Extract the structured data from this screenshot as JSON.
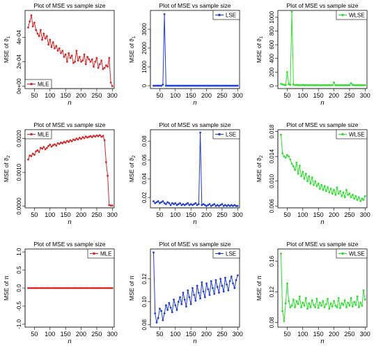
{
  "figure": {
    "background": "#ffffff"
  },
  "chart_data": [
    {
      "type": "line",
      "color": "#d62728",
      "title": "Plot of MSE vs sample size",
      "xlabel": "n",
      "ylabel_base": "MSE of ϑ",
      "ylabel_sub": "1",
      "legend": "MLE",
      "legend_position": "bottom-left",
      "xlim": [
        20,
        306
      ],
      "ylim": [
        -2e-05,
        0.00062
      ],
      "xticks": [
        50,
        100,
        150,
        200,
        250,
        300
      ],
      "yticks": [
        0,
        0.0002,
        0.0004
      ],
      "ytick_labels": [
        "0e+00",
        "2e-04",
        "4e-04"
      ],
      "x": [
        30,
        35,
        40,
        45,
        50,
        55,
        60,
        65,
        70,
        75,
        80,
        85,
        90,
        95,
        100,
        105,
        110,
        115,
        120,
        125,
        130,
        135,
        140,
        145,
        150,
        155,
        160,
        165,
        170,
        175,
        180,
        185,
        190,
        195,
        200,
        205,
        210,
        215,
        220,
        225,
        230,
        235,
        240,
        245,
        250,
        255,
        260,
        265,
        270,
        275,
        280,
        285,
        290,
        295,
        300
      ],
      "values": [
        0.00048,
        0.00053,
        0.00058,
        0.00049,
        0.00052,
        0.00046,
        0.00043,
        0.00041,
        0.00046,
        0.00038,
        0.00043,
        0.00039,
        0.00041,
        0.00034,
        0.00038,
        0.00032,
        0.00036,
        0.00031,
        0.00033,
        0.00029,
        0.00031,
        0.00027,
        0.00029,
        0.00024,
        0.00026,
        0.0002,
        0.00027,
        0.00023,
        0.00025,
        0.00019,
        0.0002,
        0.00029,
        0.00021,
        0.00024,
        0.0002,
        0.00021,
        0.00026,
        0.00018,
        0.00024,
        0.00022,
        0.0002,
        0.00022,
        0.00016,
        0.0002,
        0.00023,
        0.00015,
        0.00018,
        0.00021,
        0.00014,
        0.00015,
        0.00017,
        0.00016,
        0.00023,
        3e-05,
        0.0
      ]
    },
    {
      "type": "line",
      "color": "#1f3fd6",
      "title": "Plot of MSE vs sample size",
      "xlabel": "n",
      "ylabel_base": "MSE of ϑ",
      "ylabel_sub": "1",
      "legend": "LSE",
      "legend_position": "top-right",
      "xlim": [
        20,
        306
      ],
      "ylim": [
        -150,
        4000
      ],
      "xticks": [
        50,
        100,
        150,
        200,
        250,
        300
      ],
      "yticks": [
        0,
        1000,
        2000,
        3000
      ],
      "ytick_labels": [
        "0",
        "1000",
        "2000",
        "3000"
      ],
      "x": [
        30,
        35,
        40,
        45,
        50,
        55,
        60,
        65,
        70,
        75,
        80,
        85,
        90,
        95,
        100,
        105,
        110,
        115,
        120,
        125,
        130,
        135,
        140,
        145,
        150,
        155,
        160,
        165,
        170,
        175,
        180,
        185,
        190,
        195,
        200,
        205,
        210,
        215,
        220,
        225,
        230,
        235,
        240,
        245,
        250,
        255,
        260,
        265,
        270,
        275,
        280,
        285,
        290,
        295,
        300
      ],
      "values": [
        3,
        2,
        4,
        2,
        3,
        2,
        60,
        3800,
        5,
        2,
        3,
        2,
        1,
        2,
        3,
        2,
        1,
        2,
        3,
        2,
        1,
        2,
        2,
        1,
        2,
        3,
        2,
        1,
        2,
        2,
        1,
        2,
        3,
        2,
        2,
        1,
        2,
        3,
        2,
        2,
        1,
        2,
        2,
        1,
        2,
        3,
        2,
        2,
        1,
        2,
        2,
        1,
        2,
        3,
        2
      ]
    },
    {
      "type": "line",
      "color": "#2ee02e",
      "title": "Plot of MSE vs sample size",
      "xlabel": "n",
      "ylabel_base": "MSE of ϑ",
      "ylabel_sub": "1",
      "legend": "WLSE",
      "legend_position": "top-right",
      "xlim": [
        20,
        306
      ],
      "ylim": [
        -40,
        1100
      ],
      "xticks": [
        50,
        100,
        150,
        200,
        250,
        300
      ],
      "yticks": [
        0,
        200,
        400,
        600,
        800,
        1000
      ],
      "ytick_labels": [
        "0",
        "200",
        "400",
        "600",
        "800",
        "1000"
      ],
      "x": [
        30,
        35,
        40,
        45,
        50,
        55,
        60,
        65,
        70,
        75,
        80,
        85,
        90,
        95,
        100,
        105,
        110,
        115,
        120,
        125,
        130,
        135,
        140,
        145,
        150,
        155,
        160,
        165,
        170,
        175,
        180,
        185,
        190,
        195,
        200,
        205,
        210,
        215,
        220,
        225,
        230,
        235,
        240,
        245,
        250,
        255,
        260,
        265,
        270,
        275,
        280,
        285,
        290,
        295,
        300
      ],
      "values": [
        30,
        20,
        15,
        10,
        200,
        25,
        15,
        1080,
        20,
        10,
        15,
        8,
        12,
        10,
        15,
        9,
        12,
        10,
        8,
        12,
        10,
        9,
        8,
        12,
        10,
        8,
        9,
        10,
        12,
        8,
        9,
        10,
        8,
        9,
        50,
        10,
        9,
        8,
        10,
        9,
        8,
        10,
        9,
        8,
        10,
        40,
        15,
        10,
        9,
        8,
        10,
        9,
        8,
        10,
        9
      ]
    },
    {
      "type": "line",
      "color": "#d62728",
      "title": "Plot of MSE vs sample size",
      "xlabel": "n",
      "ylabel_base": "MSE of ϑ",
      "ylabel_sub": "2",
      "legend": "MLE",
      "legend_position": "top-left",
      "xlim": [
        20,
        306
      ],
      "ylim": [
        -5e-05,
        0.00226
      ],
      "xticks": [
        50,
        100,
        150,
        200,
        250,
        300
      ],
      "yticks": [
        0,
        0.001,
        0.002
      ],
      "ytick_labels": [
        "0.0000",
        "0.0010",
        "0.0020"
      ],
      "x": [
        30,
        35,
        40,
        45,
        50,
        55,
        60,
        65,
        70,
        75,
        80,
        85,
        90,
        95,
        100,
        105,
        110,
        115,
        120,
        125,
        130,
        135,
        140,
        145,
        150,
        155,
        160,
        165,
        170,
        175,
        180,
        185,
        190,
        195,
        200,
        205,
        210,
        215,
        220,
        225,
        230,
        235,
        240,
        245,
        250,
        255,
        260,
        265,
        270,
        275,
        280,
        285,
        290,
        295,
        300
      ],
      "values": [
        0.00138,
        0.0015,
        0.00148,
        0.00155,
        0.00152,
        0.00162,
        0.00165,
        0.0016,
        0.00172,
        0.0017,
        0.00175,
        0.00168,
        0.00172,
        0.00178,
        0.00182,
        0.00176,
        0.0018,
        0.00183,
        0.00179,
        0.00186,
        0.00184,
        0.00188,
        0.00186,
        0.0019,
        0.00188,
        0.00193,
        0.0019,
        0.00195,
        0.00192,
        0.00197,
        0.00195,
        0.002,
        0.00197,
        0.00202,
        0.00199,
        0.00204,
        0.00201,
        0.00206,
        0.00203,
        0.00205,
        0.00207,
        0.00204,
        0.00208,
        0.00206,
        0.00209,
        0.00207,
        0.0021,
        0.00205,
        0.00208,
        0.00195,
        0.0013,
        0.0009,
        3e-05,
        2e-05,
        2e-05
      ]
    },
    {
      "type": "line",
      "color": "#1f3fd6",
      "title": "Plot of MSE vs sample size",
      "xlabel": "n",
      "ylabel_base": "MSE of ϑ",
      "ylabel_sub": "2",
      "legend": "LSE",
      "legend_position": "top-right",
      "xlim": [
        20,
        306
      ],
      "ylim": [
        0.009,
        0.092
      ],
      "xticks": [
        50,
        100,
        150,
        200,
        250,
        300
      ],
      "yticks": [
        0.02,
        0.04,
        0.06,
        0.08
      ],
      "ytick_labels": [
        "0.02",
        "0.04",
        "0.06",
        "0.08"
      ],
      "x": [
        30,
        35,
        40,
        45,
        50,
        55,
        60,
        65,
        70,
        75,
        80,
        85,
        90,
        95,
        100,
        105,
        110,
        115,
        120,
        125,
        130,
        135,
        140,
        145,
        150,
        155,
        160,
        165,
        170,
        175,
        180,
        185,
        190,
        195,
        200,
        205,
        210,
        215,
        220,
        225,
        230,
        235,
        240,
        245,
        250,
        255,
        260,
        265,
        270,
        275,
        280,
        285,
        290,
        295,
        300
      ],
      "values": [
        0.016,
        0.014,
        0.015,
        0.016,
        0.014,
        0.015,
        0.016,
        0.014,
        0.013,
        0.015,
        0.014,
        0.012,
        0.014,
        0.013,
        0.014,
        0.012,
        0.013,
        0.014,
        0.012,
        0.013,
        0.012,
        0.013,
        0.014,
        0.012,
        0.013,
        0.012,
        0.013,
        0.014,
        0.012,
        0.013,
        0.089,
        0.012,
        0.013,
        0.012,
        0.011,
        0.012,
        0.013,
        0.011,
        0.012,
        0.013,
        0.011,
        0.012,
        0.011,
        0.012,
        0.013,
        0.011,
        0.012,
        0.011,
        0.012,
        0.011,
        0.012,
        0.011,
        0.012,
        0.011,
        0.011
      ]
    },
    {
      "type": "line",
      "color": "#2ee02e",
      "title": "Plot of MSE vs sample size",
      "xlabel": "n",
      "ylabel_base": "MSE of ϑ",
      "ylabel_sub": "2",
      "legend": "WLSE",
      "legend_position": "top-right",
      "xlim": [
        20,
        306
      ],
      "ylim": [
        0.0057,
        0.0183
      ],
      "xticks": [
        50,
        100,
        150,
        200,
        250,
        300
      ],
      "yticks": [
        0.006,
        0.01,
        0.014,
        0.018
      ],
      "ytick_labels": [
        "0.006",
        "0.010",
        "0.014",
        "0.018"
      ],
      "x": [
        30,
        35,
        40,
        45,
        50,
        55,
        60,
        65,
        70,
        75,
        80,
        85,
        90,
        95,
        100,
        105,
        110,
        115,
        120,
        125,
        130,
        135,
        140,
        145,
        150,
        155,
        160,
        165,
        170,
        175,
        180,
        185,
        190,
        195,
        200,
        205,
        210,
        215,
        220,
        225,
        230,
        235,
        240,
        245,
        250,
        255,
        260,
        265,
        270,
        275,
        280,
        285,
        290,
        295,
        300
      ],
      "values": [
        0.0175,
        0.0145,
        0.014,
        0.0138,
        0.0142,
        0.014,
        0.0135,
        0.0128,
        0.0124,
        0.0118,
        0.013,
        0.0112,
        0.0125,
        0.0108,
        0.0115,
        0.0104,
        0.0112,
        0.01,
        0.0108,
        0.0096,
        0.0106,
        0.0094,
        0.01,
        0.0092,
        0.0096,
        0.0088,
        0.0094,
        0.0086,
        0.0092,
        0.0084,
        0.009,
        0.0082,
        0.0088,
        0.008,
        0.0086,
        0.0078,
        0.009,
        0.008,
        0.0084,
        0.0076,
        0.0082,
        0.0074,
        0.0086,
        0.0078,
        0.008,
        0.0074,
        0.0078,
        0.0072,
        0.0076,
        0.007,
        0.0074,
        0.0068,
        0.0072,
        0.007,
        0.0076
      ]
    },
    {
      "type": "line",
      "color": "#d62728",
      "title": "Plot of MSE vs sample size",
      "xlabel": "n",
      "ylabel_base": "MSE of π",
      "ylabel_sub": "",
      "legend": "MLE",
      "legend_position": "top-right",
      "xlim": [
        20,
        306
      ],
      "ylim": [
        -1.08,
        1.08
      ],
      "xticks": [
        50,
        100,
        150,
        200,
        250,
        300
      ],
      "yticks": [
        -1,
        -0.5,
        0,
        0.5,
        1
      ],
      "ytick_labels": [
        "-1.0",
        "-0.5",
        "0.0",
        "0.5",
        "1.0"
      ],
      "x": [
        30,
        35,
        40,
        45,
        50,
        55,
        60,
        65,
        70,
        75,
        80,
        85,
        90,
        95,
        100,
        105,
        110,
        115,
        120,
        125,
        130,
        135,
        140,
        145,
        150,
        155,
        160,
        165,
        170,
        175,
        180,
        185,
        190,
        195,
        200,
        205,
        210,
        215,
        220,
        225,
        230,
        235,
        240,
        245,
        250,
        255,
        260,
        265,
        270,
        275,
        280,
        285,
        290,
        295,
        300
      ],
      "values": [
        0,
        0,
        0,
        0,
        0,
        0,
        0,
        0,
        0,
        0,
        0,
        0,
        0,
        0,
        0,
        0,
        0,
        0,
        0,
        0,
        0,
        0,
        0,
        0,
        0,
        0,
        0,
        0,
        0,
        0,
        0,
        0,
        0,
        0,
        0,
        0,
        0,
        0,
        0,
        0,
        0,
        0,
        0,
        0,
        0,
        0,
        0,
        0,
        0,
        0,
        0,
        0,
        0,
        0,
        0
      ]
    },
    {
      "type": "line",
      "color": "#1f3fd6",
      "title": "Plot of MSE vs sample size",
      "xlabel": "n",
      "ylabel_base": "MSE of π",
      "ylabel_sub": "",
      "legend": "LSE",
      "legend_position": "top-right",
      "xlim": [
        20,
        306
      ],
      "ylim": [
        0.078,
        0.146
      ],
      "xticks": [
        50,
        100,
        150,
        200,
        250,
        300
      ],
      "yticks": [
        0.08,
        0.1,
        0.12
      ],
      "ytick_labels": [
        "0.08",
        "0.10",
        "0.12"
      ],
      "x": [
        30,
        35,
        40,
        45,
        50,
        55,
        60,
        65,
        70,
        75,
        80,
        85,
        90,
        95,
        100,
        105,
        110,
        115,
        120,
        125,
        130,
        135,
        140,
        145,
        150,
        155,
        160,
        165,
        170,
        175,
        180,
        185,
        190,
        195,
        200,
        205,
        210,
        215,
        220,
        225,
        230,
        235,
        240,
        245,
        250,
        255,
        260,
        265,
        270,
        275,
        280,
        285,
        290,
        295,
        300
      ],
      "values": [
        0.143,
        0.09,
        0.082,
        0.086,
        0.094,
        0.092,
        0.084,
        0.09,
        0.097,
        0.093,
        0.099,
        0.095,
        0.091,
        0.102,
        0.097,
        0.093,
        0.1,
        0.104,
        0.098,
        0.108,
        0.102,
        0.096,
        0.11,
        0.104,
        0.098,
        0.112,
        0.106,
        0.101,
        0.114,
        0.108,
        0.103,
        0.117,
        0.109,
        0.104,
        0.116,
        0.111,
        0.106,
        0.118,
        0.112,
        0.107,
        0.119,
        0.113,
        0.108,
        0.12,
        0.114,
        0.109,
        0.121,
        0.115,
        0.11,
        0.118,
        0.122,
        0.116,
        0.112,
        0.119,
        0.123
      ]
    },
    {
      "type": "line",
      "color": "#2ee02e",
      "title": "Plot of MSE vs sample size",
      "xlabel": "n",
      "ylabel_base": "MSE of π",
      "ylabel_sub": "",
      "legend": "WLSE",
      "legend_position": "top-right",
      "xlim": [
        20,
        306
      ],
      "ylim": [
        0.074,
        0.176
      ],
      "xticks": [
        50,
        100,
        150,
        200,
        250,
        300
      ],
      "yticks": [
        0.08,
        0.12,
        0.16
      ],
      "ytick_labels": [
        "0.08",
        "0.12",
        "0.16"
      ],
      "x": [
        30,
        35,
        40,
        45,
        50,
        55,
        60,
        65,
        70,
        75,
        80,
        85,
        90,
        95,
        100,
        105,
        110,
        115,
        120,
        125,
        130,
        135,
        140,
        145,
        150,
        155,
        160,
        165,
        170,
        175,
        180,
        185,
        190,
        195,
        200,
        205,
        210,
        215,
        220,
        225,
        230,
        235,
        240,
        245,
        250,
        255,
        260,
        265,
        270,
        275,
        280,
        285,
        290,
        295,
        300
      ],
      "values": [
        0.17,
        0.095,
        0.082,
        0.105,
        0.131,
        0.108,
        0.1,
        0.102,
        0.11,
        0.1,
        0.108,
        0.104,
        0.114,
        0.1,
        0.106,
        0.102,
        0.112,
        0.098,
        0.105,
        0.1,
        0.109,
        0.103,
        0.1,
        0.111,
        0.099,
        0.106,
        0.102,
        0.108,
        0.1,
        0.104,
        0.111,
        0.098,
        0.105,
        0.101,
        0.108,
        0.102,
        0.1,
        0.112,
        0.099,
        0.105,
        0.103,
        0.109,
        0.1,
        0.106,
        0.102,
        0.112,
        0.101,
        0.107,
        0.103,
        0.114,
        0.1,
        0.106,
        0.102,
        0.122,
        0.11
      ]
    }
  ]
}
